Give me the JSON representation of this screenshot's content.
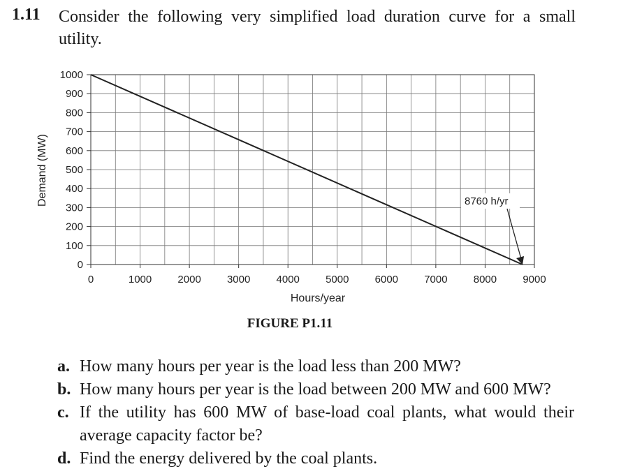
{
  "problem": {
    "number": "1.11",
    "text": "Consider the following very simplified load duration curve for a small utility."
  },
  "figure_caption": "FIGURE P1.11",
  "chart_data": {
    "type": "line",
    "xlabel": "Hours/year",
    "ylabel": "Demand (MW)",
    "xlim": [
      0,
      9000
    ],
    "ylim": [
      0,
      1000
    ],
    "x_ticks": [
      0,
      1000,
      2000,
      3000,
      4000,
      5000,
      6000,
      7000,
      8000,
      9000
    ],
    "x_tick_labels": [
      "0",
      "1000",
      "2000",
      "3000",
      "4000",
      "5000",
      "6000",
      "7000",
      "8000",
      "9000"
    ],
    "y_ticks": [
      0,
      100,
      200,
      300,
      400,
      500,
      600,
      700,
      800,
      900,
      1000
    ],
    "y_tick_labels": [
      "0",
      "100",
      "200",
      "300",
      "400",
      "500",
      "600",
      "700",
      "800",
      "900",
      "1000"
    ],
    "grid": true,
    "x_grid_step": 500,
    "y_grid_step": 100,
    "series": [
      {
        "x": [
          0,
          8760
        ],
        "y": [
          1000,
          0
        ]
      }
    ],
    "annotation": {
      "text": "8760 h/yr",
      "points_to": [
        8760,
        0
      ]
    }
  },
  "questions": [
    {
      "label": "a.",
      "text": "How many hours per year is the load less than 200 MW?"
    },
    {
      "label": "b.",
      "text": "How many hours per year is the load between 200 MW and 600 MW?"
    },
    {
      "label": "c.",
      "text": "If the utility has 600 MW of base-load coal plants, what would their average capacity factor be?"
    },
    {
      "label": "d.",
      "text": "Find the energy delivered by the coal plants."
    }
  ]
}
